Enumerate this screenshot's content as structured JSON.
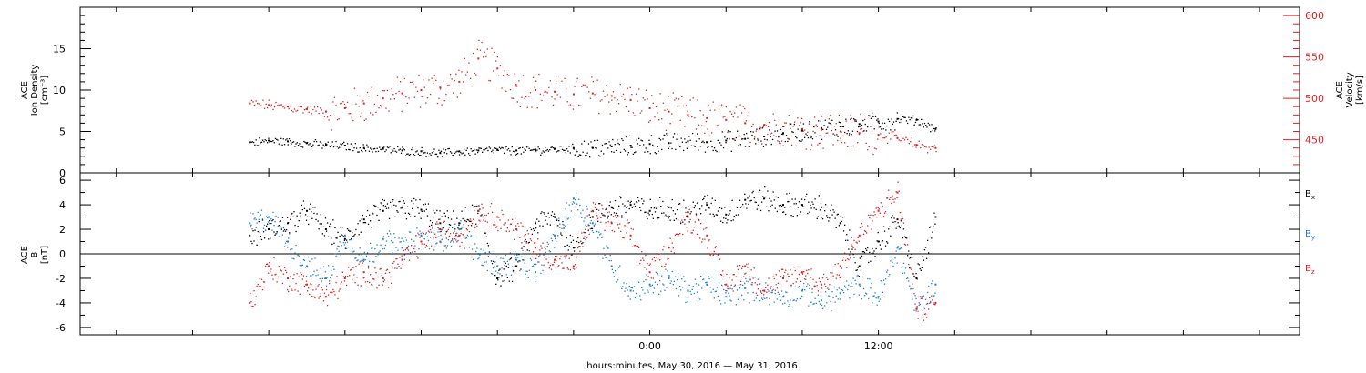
{
  "chart_data": [
    {
      "type": "scatter",
      "panel": "top",
      "title": "",
      "ylabel_left": [
        "ACE",
        "Ion Density",
        "[cm⁻³]"
      ],
      "ylabel_right": [
        "ACE",
        "Velocity",
        "[km/s]"
      ],
      "ylim_left": [
        0,
        20
      ],
      "ylim_right": [
        410,
        610
      ],
      "yticks_left": [
        0,
        5,
        10,
        15
      ],
      "yticks_right": [
        450,
        500,
        550,
        600
      ],
      "grid": false,
      "series": [
        {
          "name": "",
          "axis": "left",
          "color": "#000000",
          "x": [
            -21,
            -20,
            -19,
            -18,
            -17,
            -16,
            -15,
            -14,
            -13,
            -12,
            -11,
            -10,
            -9,
            -8,
            -7,
            -6,
            -5,
            -4,
            -3,
            -2,
            -1,
            0,
            1,
            2,
            3,
            4,
            5,
            6,
            7,
            8,
            9,
            10,
            11,
            12,
            13,
            14,
            15
          ],
          "y": [
            3.7,
            3.9,
            3.8,
            3.6,
            3.4,
            3.3,
            3.0,
            2.9,
            2.7,
            2.6,
            2.4,
            2.6,
            2.7,
            2.8,
            2.7,
            2.8,
            2.9,
            3.0,
            3.0,
            3.2,
            3.3,
            3.5,
            3.6,
            3.8,
            3.7,
            3.9,
            4.1,
            4.4,
            4.8,
            5.1,
            5.4,
            5.6,
            5.9,
            6.2,
            6.5,
            6.4,
            5.3
          ]
        },
        {
          "name": "",
          "axis": "right",
          "color": "#e02020",
          "x": [
            -21,
            -20,
            -19,
            -18,
            -17,
            -16,
            -15,
            -14,
            -13,
            -12,
            -11,
            -10,
            -9,
            -8,
            -7,
            -6,
            -5,
            -4,
            -3,
            -2,
            -1,
            0,
            1,
            2,
            3,
            4,
            5,
            6,
            7,
            8,
            9,
            10,
            11,
            12,
            13,
            14,
            15
          ],
          "y": [
            494,
            492,
            490,
            487,
            484,
            488,
            494,
            500,
            506,
            510,
            513,
            520,
            548,
            536,
            515,
            510,
            508,
            505,
            506,
            503,
            498,
            488,
            484,
            480,
            476,
            474,
            470,
            468,
            466,
            463,
            462,
            460,
            458,
            456,
            452,
            444,
            440
          ]
        }
      ]
    },
    {
      "type": "scatter",
      "panel": "bottom",
      "title": "",
      "ylabel_left": [
        "ACE",
        "B",
        "[nT]"
      ],
      "ylim": [
        -6.6,
        6.6
      ],
      "yticks": [
        -6,
        -4,
        -2,
        0,
        2,
        4,
        6
      ],
      "zero_line": true,
      "grid": false,
      "legend_placement": "right",
      "series": [
        {
          "name": "Bx",
          "label_main": "B",
          "label_sub": "x",
          "color": "#000000",
          "x": [
            -21,
            -20,
            -19,
            -18,
            -17,
            -16,
            -15,
            -14,
            -13,
            -12,
            -11,
            -10,
            -9,
            -8,
            -7,
            -6,
            -5,
            -4,
            -3,
            -2,
            -1,
            0,
            1,
            2,
            3,
            4,
            5,
            6,
            7,
            8,
            9,
            10,
            11,
            12,
            13,
            14,
            15
          ],
          "y": [
            1.5,
            2.0,
            2.5,
            3.5,
            2.0,
            1.2,
            2.8,
            3.5,
            3.8,
            3.6,
            2.5,
            2.5,
            3.5,
            -2.0,
            -1.0,
            2.5,
            3.0,
            0.5,
            3.0,
            3.8,
            4.0,
            3.5,
            3.8,
            3.4,
            4.0,
            3.2,
            4.4,
            4.5,
            4.0,
            4.0,
            3.8,
            2.5,
            -1.0,
            1.0,
            2.8,
            -2.0,
            3.0
          ]
        },
        {
          "name": "By",
          "label_main": "B",
          "label_sub": "y",
          "color": "#1f7fd6",
          "x": [
            -21,
            -20,
            -19,
            -18,
            -17,
            -16,
            -15,
            -14,
            -13,
            -12,
            -11,
            -10,
            -9,
            -8,
            -7,
            -6,
            -5,
            -4,
            -3,
            -2,
            -1,
            0,
            1,
            2,
            3,
            4,
            5,
            6,
            7,
            8,
            9,
            10,
            11,
            12,
            13,
            14,
            15
          ],
          "y": [
            2.5,
            3.0,
            1.0,
            -1.0,
            -2.0,
            1.5,
            -0.5,
            1.2,
            0.5,
            1.5,
            1.0,
            2.0,
            0.0,
            -1.0,
            -0.5,
            -1.5,
            1.5,
            4.5,
            2.5,
            -1.0,
            -3.0,
            -2.5,
            -2.0,
            -3.0,
            -2.5,
            -3.5,
            -2.8,
            -3.0,
            -3.5,
            -3.0,
            -3.8,
            -3.2,
            -2.5,
            -3.5,
            0.5,
            -4.5,
            -2.5
          ]
        },
        {
          "name": "Bz",
          "label_main": "B",
          "label_sub": "z",
          "color": "#e02020",
          "x": [
            -21,
            -20,
            -19,
            -18,
            -17,
            -16,
            -15,
            -14,
            -13,
            -12,
            -11,
            -10,
            -9,
            -8,
            -7,
            -6,
            -5,
            -4,
            -3,
            -2,
            -1,
            0,
            1,
            2,
            3,
            4,
            5,
            6,
            7,
            8,
            9,
            10,
            11,
            12,
            13,
            14,
            15
          ],
          "y": [
            -4.0,
            -1.0,
            -2.0,
            -2.5,
            -3.5,
            -2.0,
            -1.5,
            -2.0,
            -0.5,
            1.0,
            2.0,
            1.5,
            3.5,
            3.0,
            2.0,
            0.5,
            -0.5,
            -1.0,
            3.5,
            2.5,
            1.5,
            -1.5,
            0.5,
            3.0,
            1.5,
            -2.5,
            -1.0,
            -3.0,
            -2.0,
            -1.5,
            -2.5,
            -1.0,
            1.5,
            3.5,
            5.0,
            -4.5,
            -4.0
          ]
        }
      ]
    }
  ],
  "x_axis": {
    "unit": "hours relative to 0:00 May 31, 2016",
    "range": [
      -29.9,
      34.1
    ],
    "major_ticks": [
      {
        "x": 0,
        "label": "0:00"
      },
      {
        "x": 12,
        "label": "12:00"
      }
    ],
    "minor_ticks": [
      -28,
      -24,
      -20,
      -16,
      -12,
      -8,
      -4,
      4,
      8,
      16,
      20,
      24,
      28,
      32
    ],
    "label": "hours:minutes, May 30, 2016 — May 31, 2016"
  },
  "colors": {
    "frame": "#000000",
    "density": "#000000",
    "velocity": "#e02020",
    "velocity_axis": "#e02020",
    "bx": "#000000",
    "by": "#1f7fd6",
    "bz": "#e02020"
  }
}
